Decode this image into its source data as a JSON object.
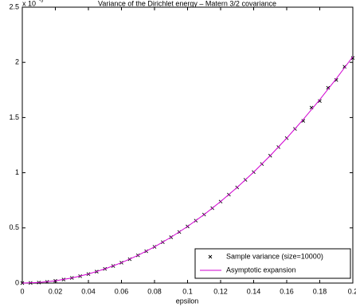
{
  "chart_data": {
    "type": "line",
    "title": "Variance of the Dirichlet energy – Matern 3/2 covariance",
    "x_label": "epsilon",
    "y_scale_label": "x 10",
    "y_scale_exponent": "-5",
    "xlim": [
      0,
      0.2
    ],
    "xticks": [
      0,
      0.02,
      0.04,
      0.06,
      0.08,
      0.1,
      0.12,
      0.14,
      0.16,
      0.18,
      0.2
    ],
    "ylim": [
      0,
      2.5
    ],
    "yticks": [
      0,
      0.5,
      1,
      1.5,
      2,
      2.5
    ],
    "grid": false,
    "legend": "lower right",
    "series": [
      {
        "name": "Sample variance (size=10000)",
        "color": "#000000",
        "marker": "x",
        "x": [
          0,
          0.005,
          0.01,
          0.015,
          0.02,
          0.025,
          0.03,
          0.035,
          0.04,
          0.045,
          0.05,
          0.055,
          0.06,
          0.065,
          0.07,
          0.075,
          0.08,
          0.085,
          0.09,
          0.095,
          0.1,
          0.105,
          0.11,
          0.115,
          0.12,
          0.125,
          0.13,
          0.135,
          0.14,
          0.145,
          0.15,
          0.155,
          0.16,
          0.165,
          0.17,
          0.175,
          0.18,
          0.185,
          0.19,
          0.195,
          0.2
        ],
        "values": [
          0,
          0.0013,
          0.0051,
          0.0115,
          0.0205,
          0.0321,
          0.0462,
          0.0628,
          0.0821,
          0.1039,
          0.1283,
          0.1552,
          0.1847,
          0.2167,
          0.2514,
          0.2886,
          0.3283,
          0.3706,
          0.4155,
          0.463,
          0.513,
          0.5656,
          0.6207,
          0.6784,
          0.7387,
          0.8016,
          0.867,
          0.9349,
          1.0055,
          1.0786,
          1.1543,
          1.2325,
          1.3133,
          1.3967,
          1.47,
          1.59,
          1.65,
          1.77,
          1.84,
          1.96,
          2.04
        ]
      },
      {
        "name": "Asymptotic expansion",
        "color": "#d100d1",
        "marker": "none",
        "x": [
          0,
          0.01,
          0.02,
          0.03,
          0.04,
          0.05,
          0.06,
          0.07,
          0.08,
          0.09,
          0.1,
          0.11,
          0.12,
          0.13,
          0.14,
          0.15,
          0.16,
          0.17,
          0.18,
          0.19,
          0.2
        ],
        "values": [
          0,
          0.0051,
          0.0205,
          0.0462,
          0.0821,
          0.1283,
          0.1847,
          0.2514,
          0.3283,
          0.4155,
          0.513,
          0.6207,
          0.7387,
          0.867,
          1.0055,
          1.1543,
          1.3133,
          1.4826,
          1.6621,
          1.8519,
          2.052
        ]
      }
    ]
  }
}
